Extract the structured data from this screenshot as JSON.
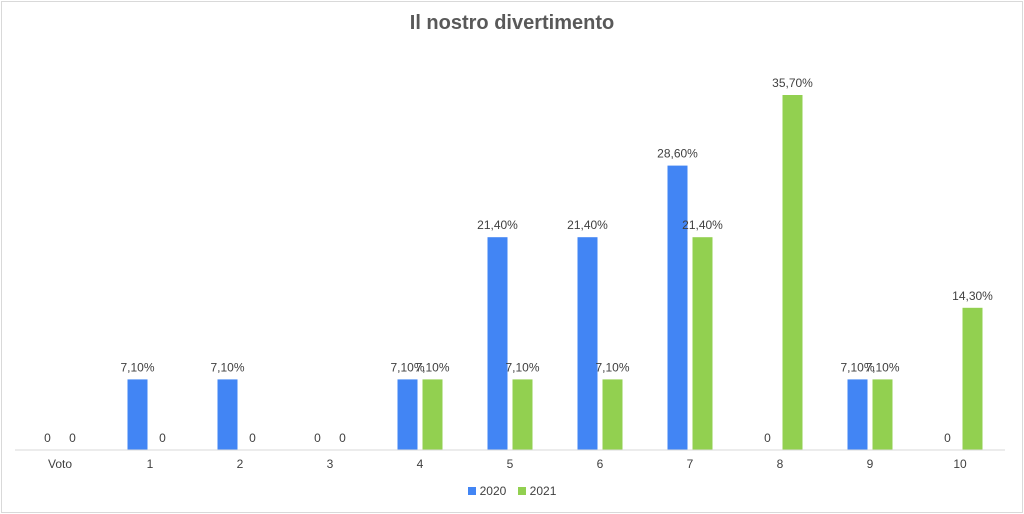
{
  "chart_data": {
    "type": "bar",
    "title": "Il nostro divertimento",
    "categories": [
      "Voto",
      "1",
      "2",
      "3",
      "4",
      "5",
      "6",
      "7",
      "8",
      "9",
      "10"
    ],
    "series": [
      {
        "name": "2020",
        "color": "#4285f4",
        "values": [
          0,
          7.1,
          7.1,
          0,
          7.1,
          21.4,
          21.4,
          28.6,
          0,
          7.1,
          0
        ],
        "labels": [
          "0",
          "7,10%",
          "7,10%",
          "0",
          "7,10%",
          "21,40%",
          "21,40%",
          "28,60%",
          "0",
          "7,10%",
          "0"
        ]
      },
      {
        "name": "2021",
        "color": "#92d050",
        "values": [
          0,
          0,
          0,
          0,
          7.1,
          7.1,
          7.1,
          21.4,
          35.7,
          7.1,
          14.3
        ],
        "labels": [
          "0",
          "0",
          "0",
          "0",
          "7,10%",
          "7,10%",
          "7,10%",
          "21,40%",
          "35,70%",
          "7,10%",
          "14,30%"
        ]
      }
    ],
    "ylim": [
      0,
      35.7
    ],
    "grid": false,
    "legend_position": "bottom"
  }
}
